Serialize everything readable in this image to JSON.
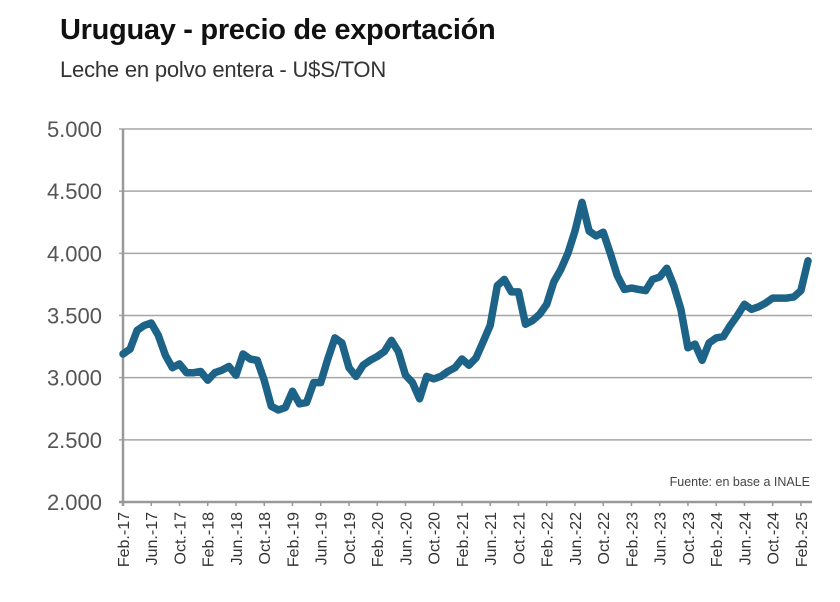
{
  "header": {
    "title": "Uruguay - precio de exportación",
    "subtitle": "Leche en polvo entera - U$S/TON"
  },
  "colors": {
    "line": "#1d6388",
    "grid": "#a6a6a6",
    "axis": "#999999",
    "text": "#555555"
  },
  "chart_data": {
    "type": "line",
    "title": "Uruguay - precio de exportación",
    "subtitle": "Leche en polvo entera - U$S/TON",
    "xlabel": "",
    "ylabel": "U$S/TON",
    "ylim": [
      2000,
      5000
    ],
    "yticks": [
      2000,
      2500,
      3000,
      3500,
      4000,
      4500,
      5000
    ],
    "ytick_labels": [
      "2.000",
      "2.500",
      "3.000",
      "3.500",
      "4.000",
      "4.500",
      "5.000"
    ],
    "grid": true,
    "legend": "none",
    "source_note": "Fuente: en base a INALE",
    "x_tick_labels": [
      "Feb.-17",
      "Jun.-17",
      "Oct.-17",
      "Feb.-18",
      "Jun.-18",
      "Oct.-18",
      "Feb.-19",
      "Jun.-19",
      "Oct.-19",
      "Feb.-20",
      "Jun.-20",
      "Oct.-20",
      "Feb.-21",
      "Jun.-21",
      "Oct.-21",
      "Feb.-22",
      "Jun.-22",
      "Oct.-22",
      "Feb.-23",
      "Jun.-23",
      "Oct.-23",
      "Feb.-24",
      "Jun.-24",
      "Oct.-24",
      "Feb.-25"
    ],
    "series": [
      {
        "name": "Leche en polvo entera",
        "start": "Feb.-17",
        "frequency": "monthly",
        "values": [
          3190,
          3230,
          3380,
          3420,
          3440,
          3340,
          3180,
          3080,
          3110,
          3040,
          3040,
          3050,
          2980,
          3040,
          3060,
          3090,
          3020,
          3190,
          3150,
          3140,
          2980,
          2770,
          2740,
          2760,
          2890,
          2790,
          2800,
          2960,
          2960,
          3150,
          3320,
          3280,
          3080,
          3010,
          3100,
          3140,
          3170,
          3210,
          3300,
          3210,
          3020,
          2960,
          2830,
          3010,
          2990,
          3010,
          3050,
          3080,
          3150,
          3100,
          3160,
          3290,
          3420,
          3740,
          3790,
          3690,
          3690,
          3430,
          3460,
          3510,
          3590,
          3770,
          3870,
          4000,
          4180,
          4410,
          4180,
          4140,
          4170,
          4000,
          3820,
          3710,
          3720,
          3710,
          3700,
          3790,
          3810,
          3880,
          3740,
          3550,
          3240,
          3270,
          3140,
          3280,
          3320,
          3330,
          3420,
          3500,
          3590,
          3550,
          3570,
          3600,
          3640,
          3640,
          3640,
          3650,
          3700,
          3940
        ]
      }
    ]
  }
}
